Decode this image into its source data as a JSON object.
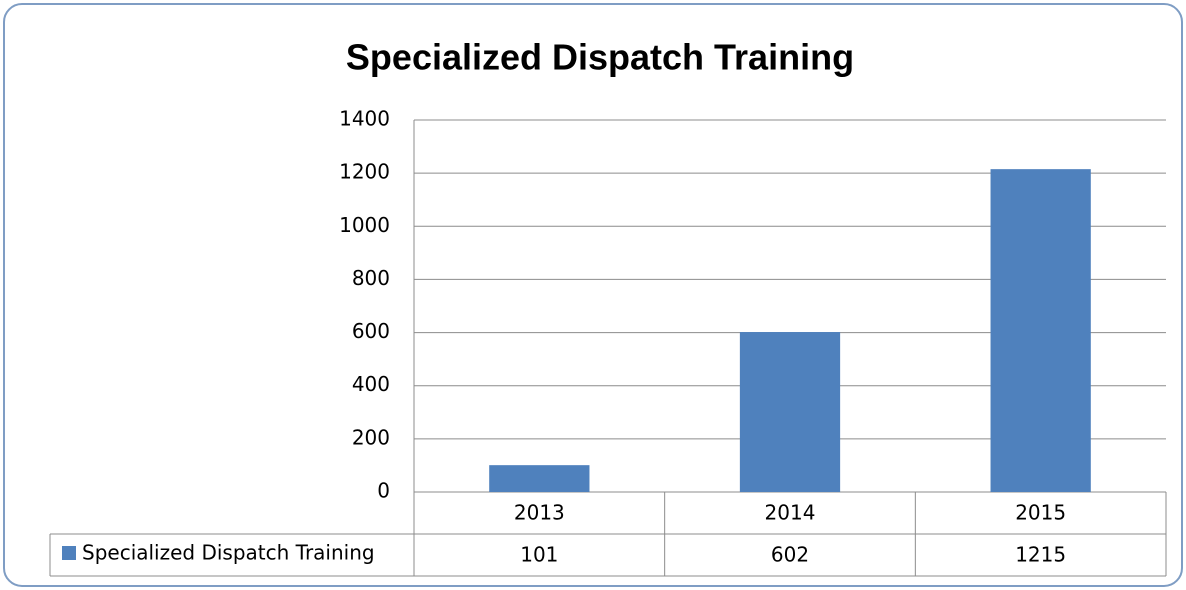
{
  "chart_data": {
    "type": "bar",
    "title": "Specialized Dispatch Training",
    "categories": [
      "2013",
      "2014",
      "2015"
    ],
    "series": [
      {
        "name": "Specialized Dispatch Training",
        "color": "#4f81bd",
        "values": [
          101,
          602,
          1215
        ]
      }
    ],
    "ylim": [
      0,
      1400
    ],
    "yticks": [
      0,
      200,
      400,
      600,
      800,
      1000,
      1200,
      1400
    ],
    "grid": true
  }
}
